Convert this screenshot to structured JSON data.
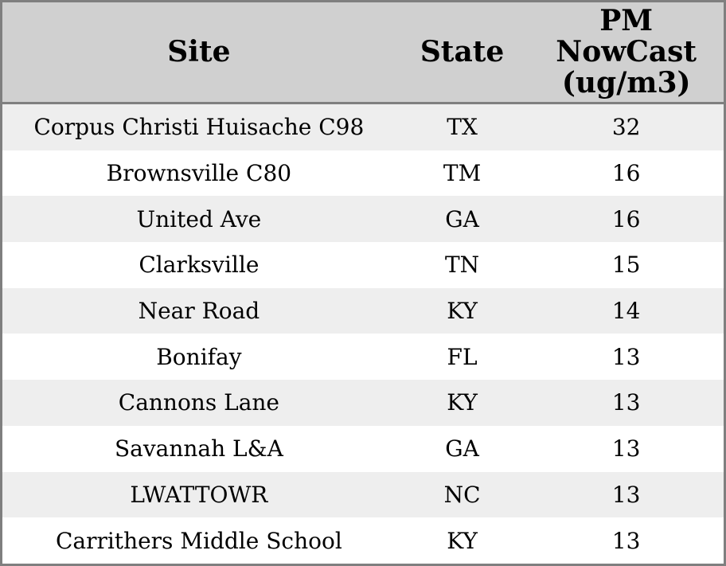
{
  "colors": {
    "border": "#7f7f7f",
    "header_bg": "#d0d0d0",
    "row_alt_bg": "#eeeeee",
    "row_bg": "#ffffff",
    "text": "#000000"
  },
  "table": {
    "header": {
      "site": "Site",
      "state": "State",
      "pm": "PM NowCast (ug/m3)",
      "pm_lines": [
        "PM",
        "NowCast",
        "(ug/m3)"
      ]
    },
    "rows": [
      {
        "site": "Corpus Christi Huisache C98",
        "state": "TX",
        "pm_nowcast": "32"
      },
      {
        "site": "Brownsville C80",
        "state": "TM",
        "pm_nowcast": "16"
      },
      {
        "site": "United Ave",
        "state": "GA",
        "pm_nowcast": "16"
      },
      {
        "site": "Clarksville",
        "state": "TN",
        "pm_nowcast": "15"
      },
      {
        "site": "Near Road",
        "state": "KY",
        "pm_nowcast": "14"
      },
      {
        "site": "Bonifay",
        "state": "FL",
        "pm_nowcast": "13"
      },
      {
        "site": "Cannons Lane",
        "state": "KY",
        "pm_nowcast": "13"
      },
      {
        "site": "Savannah L&A",
        "state": "GA",
        "pm_nowcast": "13"
      },
      {
        "site": "LWATTOWR",
        "state": "NC",
        "pm_nowcast": "13"
      },
      {
        "site": "Carrithers Middle School",
        "state": "KY",
        "pm_nowcast": "13"
      }
    ]
  },
  "chart_data": {
    "type": "table",
    "title": "",
    "columns": [
      "Site",
      "State",
      "PM NowCast (ug/m3)"
    ],
    "rows": [
      [
        "Corpus Christi Huisache C98",
        "TX",
        32
      ],
      [
        "Brownsville C80",
        "TM",
        16
      ],
      [
        "United Ave",
        "GA",
        16
      ],
      [
        "Clarksville",
        "TN",
        15
      ],
      [
        "Near Road",
        "KY",
        14
      ],
      [
        "Bonifay",
        "FL",
        13
      ],
      [
        "Cannons Lane",
        "KY",
        13
      ],
      [
        "Savannah L&A",
        "GA",
        13
      ],
      [
        "LWATTOWR",
        "NC",
        13
      ],
      [
        "Carrithers Middle School",
        "KY",
        13
      ]
    ]
  }
}
